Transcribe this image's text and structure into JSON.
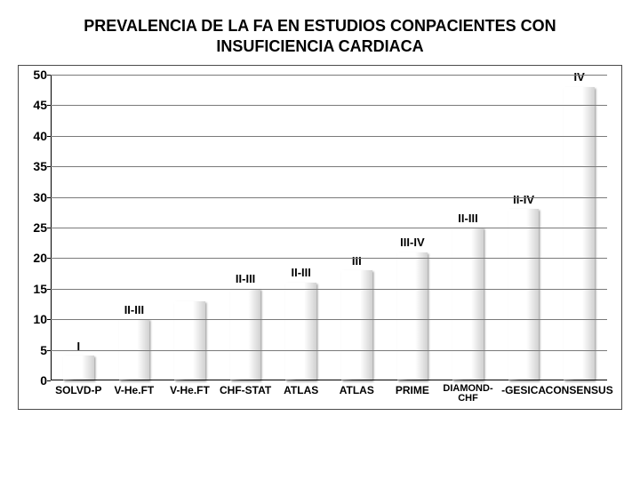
{
  "title_line1": "PREVALENCIA DE LA FA EN ESTUDIOS CONPACIENTES CON",
  "title_line2": "INSUFICIENCIA CARDIACA",
  "title_fontsize": 18,
  "chart": {
    "type": "bar",
    "ymin": 0,
    "ymax": 50,
    "ytick_step": 5,
    "ytick_fontsize": 14,
    "grid_color": "#7a7a7a",
    "axis_color": "#000000",
    "background_color": "#ffffff",
    "bar_rel_width": 0.55,
    "xlabel_fontsize": 12,
    "annot_fontsize": 13,
    "series": [
      {
        "label": "SOLVD-P",
        "label_override": "",
        "value": 4,
        "color": "#d24a10",
        "annot": "I"
      },
      {
        "label": "V-He.FT",
        "label_override": "V-He.FT",
        "value": 10,
        "color": "#d4131a",
        "annot": "II-III"
      },
      {
        "label": "V-He.FT",
        "label_override": "",
        "value": 13,
        "color": "#29c2c9",
        "annot": ""
      },
      {
        "label": "CHF-STAT",
        "label_override": "CHF-STAT",
        "value": 15,
        "color": "#69a522",
        "annot": "II-III"
      },
      {
        "label": "ATLAS",
        "label_override": "",
        "value": 16,
        "color": "#e9ce10",
        "annot": "II-III"
      },
      {
        "label": "ATLAS",
        "label_override": "",
        "value": 18,
        "color": "#e87b0e",
        "annot": "III"
      },
      {
        "label": "PRIME",
        "label_override": "PRIME",
        "value": 21,
        "color": "#2f55c9",
        "annot": "III-IV"
      },
      {
        "label": "DIAMOND-CHF",
        "label_override": "",
        "value": 25,
        "color": "#19bb55",
        "annot": "II-III"
      },
      {
        "label": "-GESICA",
        "label_override": "-GESICA",
        "value": 28,
        "color": "#b278e3",
        "annot": "II-IV"
      },
      {
        "label": "CONSENSUS",
        "label_override": "",
        "value": 48,
        "color": "#8a1f8f",
        "annot": "IV"
      }
    ]
  }
}
